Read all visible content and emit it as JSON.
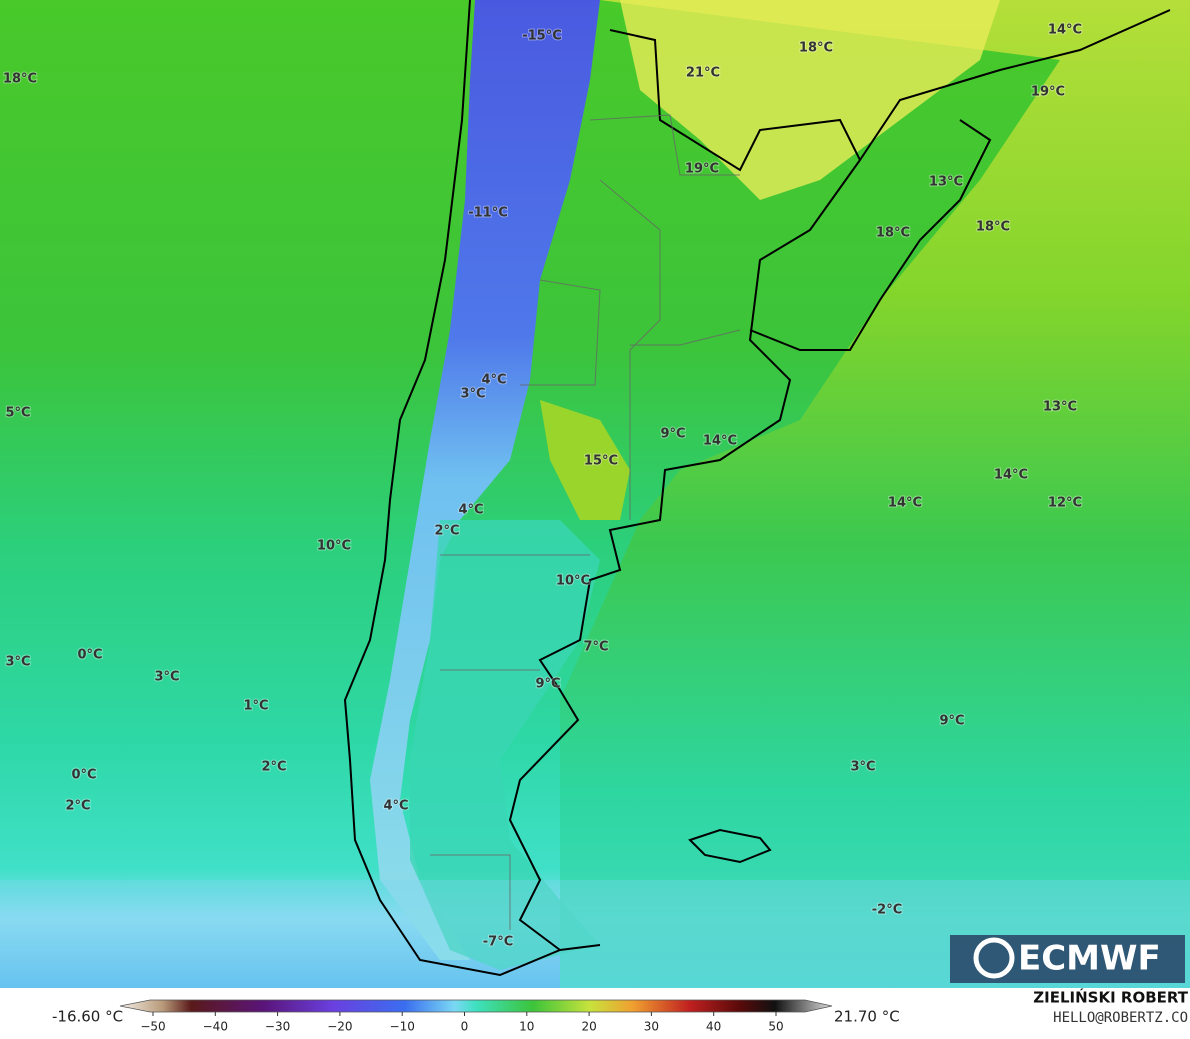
{
  "map": {
    "labels": [
      "-15°C",
      "18°C",
      "14°C",
      "21°C",
      "18°C",
      "19°C",
      "19°C",
      "13°C",
      "-11°C",
      "18°C",
      "18°C",
      "4°C",
      "3°C",
      "5°C",
      "13°C",
      "9°C",
      "14°C",
      "15°C",
      "14°C",
      "14°C",
      "12°C",
      "4°C",
      "2°C",
      "10°C",
      "10°C",
      "7°C",
      "3°C",
      "0°C",
      "3°C",
      "9°C",
      "1°C",
      "9°C",
      "2°C",
      "3°C",
      "0°C",
      "2°C",
      "4°C",
      "-2°C",
      "-7°C"
    ],
    "logo": "ECMWF"
  },
  "colorbar": {
    "min_label": "-16.60 °C",
    "max_label": "21.70 °C",
    "ticks": [
      {
        "value": -50,
        "label": "−50"
      },
      {
        "value": -40,
        "label": "−40"
      },
      {
        "value": -30,
        "label": "−30"
      },
      {
        "value": -20,
        "label": "−20"
      },
      {
        "value": -10,
        "label": "−10"
      },
      0,
      10,
      20,
      30,
      40,
      50
    ]
  },
  "credit": {
    "name": "ZIELIŃSKI ROBERT",
    "contact": "HELLO@ROBERTZ.CO"
  }
}
